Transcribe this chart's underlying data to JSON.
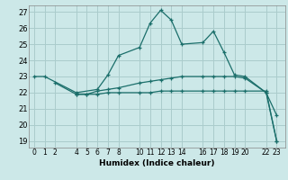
{
  "background_color": "#cce8e8",
  "grid_color": "#aacccc",
  "line_color": "#1a6e6a",
  "xlabel": "Humidex (Indice chaleur)",
  "ylim": [
    18.6,
    27.4
  ],
  "yticks": [
    19,
    20,
    21,
    22,
    23,
    24,
    25,
    26,
    27
  ],
  "xticks": [
    0,
    1,
    2,
    4,
    5,
    6,
    7,
    8,
    10,
    11,
    12,
    13,
    14,
    16,
    17,
    18,
    19,
    20,
    22,
    23
  ],
  "xlim": [
    -0.5,
    23.8
  ],
  "curves": [
    {
      "x": [
        0,
        1,
        4,
        6,
        7,
        8,
        10,
        11,
        12,
        13,
        14,
        16,
        17,
        18,
        19,
        20,
        22,
        23
      ],
      "y": [
        23,
        23,
        22,
        22.2,
        23.1,
        24.3,
        24.8,
        26.3,
        27.1,
        26.5,
        25.0,
        25.1,
        25.8,
        24.5,
        23.1,
        23.0,
        22.0,
        20.6
      ]
    },
    {
      "x": [
        2,
        4,
        5,
        6,
        7,
        8,
        10,
        11,
        12,
        13,
        14,
        16,
        17,
        18,
        19,
        20,
        22,
        23
      ],
      "y": [
        22.6,
        21.9,
        21.9,
        22.1,
        22.2,
        22.3,
        22.6,
        22.7,
        22.8,
        22.9,
        23.0,
        23.0,
        23.0,
        23.0,
        23.0,
        22.9,
        22.0,
        19.0
      ]
    },
    {
      "x": [
        4,
        5,
        6,
        7,
        8,
        10,
        11,
        12,
        13,
        14,
        16,
        17,
        18,
        19,
        20,
        22,
        23
      ],
      "y": [
        21.9,
        21.9,
        21.9,
        22.0,
        22.0,
        22.0,
        22.0,
        22.1,
        22.1,
        22.1,
        22.1,
        22.1,
        22.1,
        22.1,
        22.1,
        22.1,
        19.0
      ]
    }
  ]
}
